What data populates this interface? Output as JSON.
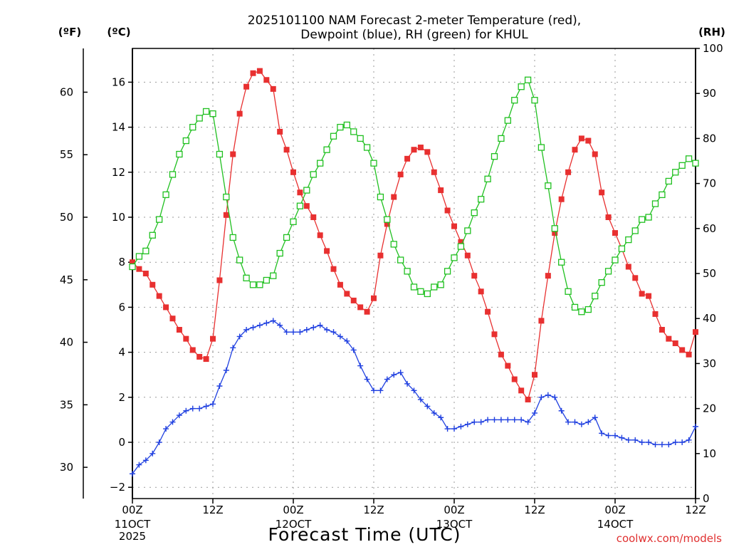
{
  "chart_data": {
    "type": "line",
    "title": "2025101100 NAM Forecast 2-meter Temperature (red),",
    "subtitle": "Dewpoint (blue), RH (green) for KHUL",
    "xlabel": "Forecast Time (UTC)",
    "credit": "coolwx.com/models",
    "units": {
      "fahrenheit": "(ºF)",
      "celsius": "(ºC)",
      "rh": "(RH)"
    },
    "x_range_hours": [
      0,
      84
    ],
    "x_ticks": [
      {
        "hour": 0,
        "time": "00Z",
        "day": "11OCT",
        "year": "2025"
      },
      {
        "hour": 12,
        "time": "12Z",
        "day": "",
        "year": ""
      },
      {
        "hour": 24,
        "time": "00Z",
        "day": "12OCT",
        "year": ""
      },
      {
        "hour": 36,
        "time": "12Z",
        "day": "",
        "year": ""
      },
      {
        "hour": 48,
        "time": "00Z",
        "day": "13OCT",
        "year": ""
      },
      {
        "hour": 60,
        "time": "12Z",
        "day": "",
        "year": ""
      },
      {
        "hour": 72,
        "time": "00Z",
        "day": "14OCT",
        "year": ""
      },
      {
        "hour": 84,
        "time": "12Z",
        "day": "",
        "year": ""
      }
    ],
    "y_celsius": {
      "range": [
        -2.5,
        17.5
      ],
      "ticks": [
        -2,
        0,
        2,
        4,
        6,
        8,
        10,
        12,
        14,
        16
      ]
    },
    "y_fahrenheit": {
      "ticks": [
        30,
        35,
        40,
        45,
        50,
        55,
        60
      ]
    },
    "y_rh": {
      "range": [
        0,
        100
      ],
      "ticks": [
        0,
        10,
        20,
        30,
        40,
        50,
        60,
        70,
        80,
        90,
        100
      ]
    },
    "series": [
      {
        "name": "Temperature",
        "unit": "C",
        "color": "#e83030",
        "marker": "filled-square",
        "points": [
          [
            0,
            8.0
          ],
          [
            1,
            7.7
          ],
          [
            2,
            7.5
          ],
          [
            3,
            7.0
          ],
          [
            4,
            6.5
          ],
          [
            5,
            6.0
          ],
          [
            6,
            5.5
          ],
          [
            7,
            5.0
          ],
          [
            8,
            4.6
          ],
          [
            9,
            4.1
          ],
          [
            10,
            3.8
          ],
          [
            11,
            3.7
          ],
          [
            12,
            4.6
          ],
          [
            13,
            7.2
          ],
          [
            14,
            10.1
          ],
          [
            15,
            12.8
          ],
          [
            16,
            14.6
          ],
          [
            17,
            15.8
          ],
          [
            18,
            16.4
          ],
          [
            19,
            16.5
          ],
          [
            20,
            16.1
          ],
          [
            21,
            15.7
          ],
          [
            22,
            13.8
          ],
          [
            23,
            13.0
          ],
          [
            24,
            12.0
          ],
          [
            25,
            11.1
          ],
          [
            26,
            10.5
          ],
          [
            27,
            10.0
          ],
          [
            28,
            9.2
          ],
          [
            29,
            8.5
          ],
          [
            30,
            7.7
          ],
          [
            31,
            7.0
          ],
          [
            32,
            6.6
          ],
          [
            33,
            6.3
          ],
          [
            34,
            6.0
          ],
          [
            35,
            5.8
          ],
          [
            36,
            6.4
          ],
          [
            37,
            8.3
          ],
          [
            38,
            9.7
          ],
          [
            39,
            10.9
          ],
          [
            40,
            11.9
          ],
          [
            41,
            12.6
          ],
          [
            42,
            13.0
          ],
          [
            43,
            13.1
          ],
          [
            44,
            12.9
          ],
          [
            45,
            12.0
          ],
          [
            46,
            11.2
          ],
          [
            47,
            10.3
          ],
          [
            48,
            9.6
          ],
          [
            49,
            8.9
          ],
          [
            50,
            8.3
          ],
          [
            51,
            7.4
          ],
          [
            52,
            6.7
          ],
          [
            53,
            5.8
          ],
          [
            54,
            4.8
          ],
          [
            55,
            3.9
          ],
          [
            56,
            3.4
          ],
          [
            57,
            2.8
          ],
          [
            58,
            2.3
          ],
          [
            59,
            1.9
          ],
          [
            60,
            3.0
          ],
          [
            61,
            5.4
          ],
          [
            62,
            7.4
          ],
          [
            63,
            9.3
          ],
          [
            64,
            10.8
          ],
          [
            65,
            12.0
          ],
          [
            66,
            13.0
          ],
          [
            67,
            13.5
          ],
          [
            68,
            13.4
          ],
          [
            69,
            12.8
          ],
          [
            70,
            11.1
          ],
          [
            71,
            10.0
          ],
          [
            72,
            9.3
          ],
          [
            73,
            8.6
          ],
          [
            74,
            7.8
          ],
          [
            75,
            7.3
          ],
          [
            76,
            6.6
          ],
          [
            77,
            6.5
          ],
          [
            78,
            5.7
          ],
          [
            79,
            5.0
          ],
          [
            80,
            4.6
          ],
          [
            81,
            4.4
          ],
          [
            82,
            4.1
          ],
          [
            83,
            3.9
          ],
          [
            84,
            4.9
          ]
        ]
      },
      {
        "name": "Dewpoint",
        "unit": "C",
        "color": "#2040e0",
        "marker": "plus",
        "points": [
          [
            0,
            -1.4
          ],
          [
            1,
            -1.0
          ],
          [
            2,
            -0.8
          ],
          [
            3,
            -0.5
          ],
          [
            4,
            0.0
          ],
          [
            5,
            0.6
          ],
          [
            6,
            0.9
          ],
          [
            7,
            1.2
          ],
          [
            8,
            1.4
          ],
          [
            9,
            1.5
          ],
          [
            10,
            1.5
          ],
          [
            11,
            1.6
          ],
          [
            12,
            1.7
          ],
          [
            13,
            2.5
          ],
          [
            14,
            3.2
          ],
          [
            15,
            4.2
          ],
          [
            16,
            4.7
          ],
          [
            17,
            5.0
          ],
          [
            18,
            5.1
          ],
          [
            19,
            5.2
          ],
          [
            20,
            5.3
          ],
          [
            21,
            5.4
          ],
          [
            22,
            5.2
          ],
          [
            23,
            4.9
          ],
          [
            24,
            4.9
          ],
          [
            25,
            4.9
          ],
          [
            26,
            5.0
          ],
          [
            27,
            5.1
          ],
          [
            28,
            5.2
          ],
          [
            29,
            5.0
          ],
          [
            30,
            4.9
          ],
          [
            31,
            4.7
          ],
          [
            32,
            4.5
          ],
          [
            33,
            4.1
          ],
          [
            34,
            3.4
          ],
          [
            35,
            2.8
          ],
          [
            36,
            2.3
          ],
          [
            37,
            2.3
          ],
          [
            38,
            2.8
          ],
          [
            39,
            3.0
          ],
          [
            40,
            3.1
          ],
          [
            41,
            2.6
          ],
          [
            42,
            2.3
          ],
          [
            43,
            1.9
          ],
          [
            44,
            1.6
          ],
          [
            45,
            1.3
          ],
          [
            46,
            1.1
          ],
          [
            47,
            0.6
          ],
          [
            48,
            0.6
          ],
          [
            49,
            0.7
          ],
          [
            50,
            0.8
          ],
          [
            51,
            0.9
          ],
          [
            52,
            0.9
          ],
          [
            53,
            1.0
          ],
          [
            54,
            1.0
          ],
          [
            55,
            1.0
          ],
          [
            56,
            1.0
          ],
          [
            57,
            1.0
          ],
          [
            58,
            1.0
          ],
          [
            59,
            0.9
          ],
          [
            60,
            1.3
          ],
          [
            61,
            2.0
          ],
          [
            62,
            2.1
          ],
          [
            63,
            2.0
          ],
          [
            64,
            1.4
          ],
          [
            65,
            0.9
          ],
          [
            66,
            0.9
          ],
          [
            67,
            0.8
          ],
          [
            68,
            0.9
          ],
          [
            69,
            1.1
          ],
          [
            70,
            0.4
          ],
          [
            71,
            0.3
          ],
          [
            72,
            0.3
          ],
          [
            73,
            0.2
          ],
          [
            74,
            0.1
          ],
          [
            75,
            0.1
          ],
          [
            76,
            0.0
          ],
          [
            77,
            0.0
          ],
          [
            78,
            -0.1
          ],
          [
            79,
            -0.1
          ],
          [
            80,
            -0.1
          ],
          [
            81,
            0.0
          ],
          [
            82,
            0.0
          ],
          [
            83,
            0.1
          ],
          [
            84,
            0.7
          ]
        ]
      },
      {
        "name": "RH",
        "unit": "%",
        "color": "#20c020",
        "marker": "open-square",
        "points": [
          [
            0,
            51.5
          ],
          [
            1,
            53.8
          ],
          [
            2,
            55.0
          ],
          [
            3,
            58.5
          ],
          [
            4,
            62.0
          ],
          [
            5,
            67.5
          ],
          [
            6,
            72.0
          ],
          [
            7,
            76.5
          ],
          [
            8,
            79.5
          ],
          [
            9,
            82.5
          ],
          [
            10,
            84.5
          ],
          [
            11,
            86.0
          ],
          [
            12,
            85.5
          ],
          [
            13,
            76.5
          ],
          [
            14,
            67.0
          ],
          [
            15,
            58.0
          ],
          [
            16,
            53.0
          ],
          [
            17,
            49.0
          ],
          [
            18,
            47.5
          ],
          [
            19,
            47.5
          ],
          [
            20,
            48.5
          ],
          [
            21,
            49.5
          ],
          [
            22,
            54.5
          ],
          [
            23,
            58.0
          ],
          [
            24,
            61.5
          ],
          [
            25,
            65.0
          ],
          [
            26,
            68.5
          ],
          [
            27,
            72.0
          ],
          [
            28,
            74.5
          ],
          [
            29,
            77.5
          ],
          [
            30,
            80.5
          ],
          [
            31,
            82.5
          ],
          [
            32,
            83.0
          ],
          [
            33,
            81.5
          ],
          [
            34,
            80.0
          ],
          [
            35,
            78.0
          ],
          [
            36,
            74.5
          ],
          [
            37,
            67.0
          ],
          [
            38,
            62.0
          ],
          [
            39,
            56.5
          ],
          [
            40,
            53.0
          ],
          [
            41,
            50.5
          ],
          [
            42,
            47.0
          ],
          [
            43,
            46.0
          ],
          [
            44,
            45.5
          ],
          [
            45,
            47.0
          ],
          [
            46,
            47.5
          ],
          [
            47,
            50.5
          ],
          [
            48,
            53.5
          ],
          [
            49,
            56.0
          ],
          [
            50,
            59.5
          ],
          [
            51,
            63.5
          ],
          [
            52,
            66.5
          ],
          [
            53,
            71.0
          ],
          [
            54,
            76.0
          ],
          [
            55,
            80.0
          ],
          [
            56,
            84.0
          ],
          [
            57,
            88.5
          ],
          [
            58,
            91.5
          ],
          [
            59,
            93.0
          ],
          [
            60,
            88.5
          ],
          [
            61,
            78.0
          ],
          [
            62,
            69.5
          ],
          [
            63,
            60.0
          ],
          [
            64,
            52.5
          ],
          [
            65,
            46.0
          ],
          [
            66,
            42.5
          ],
          [
            67,
            41.5
          ],
          [
            68,
            42.0
          ],
          [
            69,
            45.0
          ],
          [
            70,
            48.0
          ],
          [
            71,
            50.5
          ],
          [
            72,
            53.0
          ],
          [
            73,
            55.5
          ],
          [
            74,
            57.5
          ],
          [
            75,
            59.5
          ],
          [
            76,
            62.0
          ],
          [
            77,
            62.5
          ],
          [
            78,
            65.5
          ],
          [
            79,
            67.5
          ],
          [
            80,
            70.5
          ],
          [
            81,
            72.5
          ],
          [
            82,
            74.0
          ],
          [
            83,
            75.5
          ],
          [
            84,
            74.5
          ]
        ]
      }
    ]
  }
}
